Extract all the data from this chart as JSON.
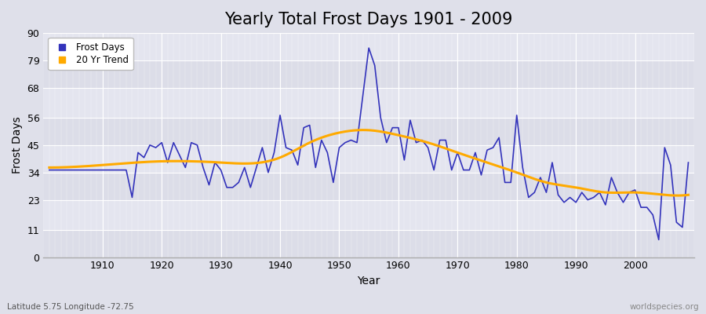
{
  "title": "Yearly Total Frost Days 1901 - 2009",
  "xlabel": "Year",
  "ylabel": "Frost Days",
  "subtitle_left": "Latitude 5.75 Longitude -72.75",
  "subtitle_right": "worldspecies.org",
  "frost_days": {
    "years": [
      1901,
      1902,
      1903,
      1904,
      1905,
      1906,
      1907,
      1908,
      1909,
      1910,
      1911,
      1912,
      1913,
      1914,
      1915,
      1916,
      1917,
      1918,
      1919,
      1920,
      1921,
      1922,
      1923,
      1924,
      1925,
      1926,
      1927,
      1928,
      1929,
      1930,
      1931,
      1932,
      1933,
      1934,
      1935,
      1936,
      1937,
      1938,
      1939,
      1940,
      1941,
      1942,
      1943,
      1944,
      1945,
      1946,
      1947,
      1948,
      1949,
      1950,
      1951,
      1952,
      1953,
      1954,
      1955,
      1956,
      1957,
      1958,
      1959,
      1960,
      1961,
      1962,
      1963,
      1964,
      1965,
      1966,
      1967,
      1968,
      1969,
      1970,
      1971,
      1972,
      1973,
      1974,
      1975,
      1976,
      1977,
      1978,
      1979,
      1980,
      1981,
      1982,
      1983,
      1984,
      1985,
      1986,
      1987,
      1988,
      1989,
      1990,
      1991,
      1992,
      1993,
      1994,
      1995,
      1996,
      1997,
      1998,
      1999,
      2000,
      2001,
      2002,
      2003,
      2004,
      2005,
      2006,
      2007,
      2008,
      2009
    ],
    "values": [
      35,
      35,
      35,
      35,
      35,
      35,
      35,
      35,
      35,
      35,
      35,
      35,
      35,
      35,
      24,
      42,
      40,
      45,
      44,
      46,
      38,
      46,
      41,
      36,
      46,
      45,
      36,
      29,
      38,
      35,
      28,
      28,
      30,
      36,
      28,
      36,
      44,
      34,
      42,
      57,
      44,
      43,
      37,
      52,
      53,
      36,
      47,
      42,
      30,
      44,
      46,
      47,
      46,
      65,
      84,
      77,
      56,
      46,
      52,
      52,
      39,
      55,
      46,
      47,
      44,
      35,
      47,
      47,
      35,
      42,
      35,
      35,
      42,
      33,
      43,
      44,
      48,
      30,
      30,
      57,
      36,
      24,
      26,
      32,
      26,
      38,
      25,
      22,
      24,
      22,
      26,
      23,
      24,
      26,
      21,
      32,
      26,
      22,
      26,
      27,
      20,
      20,
      17,
      7,
      44,
      37,
      14,
      12,
      38
    ]
  },
  "trend_knots_years": [
    1901,
    1910,
    1920,
    1930,
    1940,
    1945,
    1950,
    1955,
    1960,
    1965,
    1970,
    1975,
    1980,
    1985,
    1990,
    1995,
    2000,
    2005,
    2009
  ],
  "trend_knots_values": [
    36,
    37,
    38.5,
    38,
    40,
    46,
    50,
    51,
    49,
    46,
    42,
    38,
    34,
    30,
    28,
    26,
    26,
    25,
    25
  ],
  "line_color": "#3333bb",
  "trend_color": "#ffaa00",
  "bg_color": "#dfe0ea",
  "band_colors": [
    "#dcdde8",
    "#e4e5ef"
  ],
  "ylim": [
    0,
    90
  ],
  "yticks": [
    0,
    11,
    23,
    34,
    45,
    56,
    68,
    79,
    90
  ],
  "xticks": [
    1910,
    1920,
    1930,
    1940,
    1950,
    1960,
    1970,
    1980,
    1990,
    2000
  ],
  "xlim": [
    1900,
    2010
  ],
  "title_fontsize": 15,
  "label_fontsize": 10,
  "tick_fontsize": 9
}
